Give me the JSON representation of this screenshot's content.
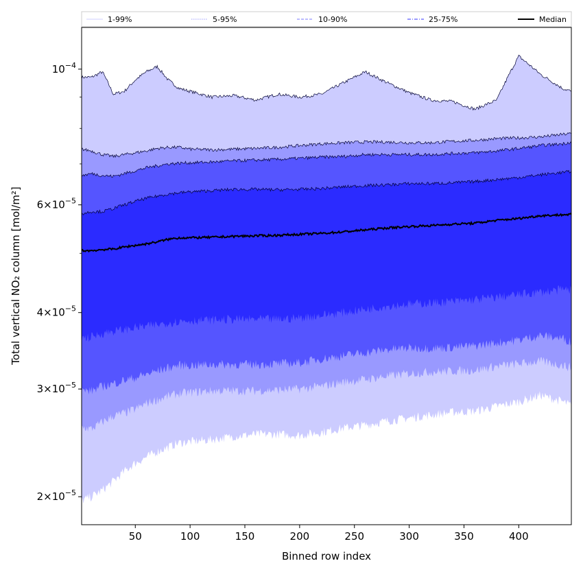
{
  "chart_data": {
    "type": "area",
    "xlabel": "Binned row index",
    "ylabel": "Total vertical NO₂ column [mol/m²]",
    "xlim": [
      1,
      448
    ],
    "ylim": [
      1.8e-05,
      0.000117
    ],
    "yscale": "log",
    "x_ticks": [
      50,
      100,
      150,
      200,
      250,
      300,
      350,
      400
    ],
    "x_tick_labels": [
      "50",
      "100",
      "150",
      "200",
      "250",
      "300",
      "350",
      "400"
    ],
    "y_ticks": [
      2e-05,
      3e-05,
      4e-05,
      6e-05,
      0.0001
    ],
    "y_tick_labels": [
      {
        "base": "2×10",
        "exp": "−5"
      },
      {
        "base": "3×10",
        "exp": "−5"
      },
      {
        "base": "4×10",
        "exp": "−5"
      },
      {
        "base": "6×10",
        "exp": "−5"
      },
      {
        "base": "10",
        "exp": "−4"
      }
    ],
    "y_minor_ticks": [
      5e-05,
      7e-05,
      8e-05,
      9e-05
    ],
    "grid": false,
    "legend_position": "top",
    "x": [
      1,
      10,
      20,
      30,
      40,
      50,
      60,
      70,
      80,
      90,
      100,
      120,
      140,
      160,
      180,
      200,
      220,
      240,
      260,
      280,
      300,
      320,
      340,
      360,
      380,
      400,
      420,
      440,
      448
    ],
    "bands": [
      {
        "name": "1-99%",
        "color": "#ccccff",
        "lower": [
          1.97e-05,
          2e-05,
          2.05e-05,
          2.12e-05,
          2.2e-05,
          2.27e-05,
          2.32e-05,
          2.37e-05,
          2.41e-05,
          2.45e-05,
          2.46e-05,
          2.48e-05,
          2.51e-05,
          2.53e-05,
          2.53e-05,
          2.52e-05,
          2.55e-05,
          2.59e-05,
          2.62e-05,
          2.66e-05,
          2.69e-05,
          2.72e-05,
          2.75e-05,
          2.76e-05,
          2.81e-05,
          2.86e-05,
          2.93e-05,
          2.86e-05,
          2.82e-05
        ],
        "upper": [
          9.7e-05,
          9.7e-05,
          9.9e-05,
          9.1e-05,
          9.2e-05,
          9.6e-05,
          9.9e-05,
          0.000101,
          9.6e-05,
          9.3e-05,
          9.2e-05,
          9e-05,
          9.05e-05,
          8.9e-05,
          9.1e-05,
          9e-05,
          9.1e-05,
          9.5e-05,
          9.9e-05,
          9.5e-05,
          9.15e-05,
          8.9e-05,
          8.85e-05,
          8.6e-05,
          8.9e-05,
          0.000105,
          9.8e-05,
          9.3e-05,
          9.2e-05
        ]
      },
      {
        "name": "5-95%",
        "color": "#9999ff",
        "lower": [
          2.6e-05,
          2.58e-05,
          2.65e-05,
          2.71e-05,
          2.74e-05,
          2.78e-05,
          2.84e-05,
          2.88e-05,
          2.92e-05,
          2.95e-05,
          2.96e-05,
          2.98e-05,
          2.98e-05,
          2.98e-05,
          2.99e-05,
          3e-05,
          3.03e-05,
          3.08e-05,
          3.11e-05,
          3.15e-05,
          3.18e-05,
          3.2e-05,
          3.21e-05,
          3.22e-05,
          3.27e-05,
          3.3e-05,
          3.33e-05,
          3.28e-05,
          3.25e-05
        ],
        "upper": [
          7.4e-05,
          7.35e-05,
          7.25e-05,
          7.2e-05,
          7.25e-05,
          7.3e-05,
          7.35e-05,
          7.42e-05,
          7.45e-05,
          7.45e-05,
          7.4e-05,
          7.38e-05,
          7.4e-05,
          7.42e-05,
          7.45e-05,
          7.5e-05,
          7.55e-05,
          7.58e-05,
          7.6e-05,
          7.6e-05,
          7.58e-05,
          7.58e-05,
          7.62e-05,
          7.65e-05,
          7.7e-05,
          7.72e-05,
          7.75e-05,
          7.82e-05,
          7.85e-05
        ]
      },
      {
        "name": "10-90%",
        "color": "#5555ff",
        "lower": [
          2.98e-05,
          2.98e-05,
          3.03e-05,
          3.06e-05,
          3.1e-05,
          3.13e-05,
          3.17e-05,
          3.21e-05,
          3.25e-05,
          3.28e-05,
          3.28e-05,
          3.29e-05,
          3.29e-05,
          3.29e-05,
          3.3e-05,
          3.31e-05,
          3.36e-05,
          3.4e-05,
          3.44e-05,
          3.48e-05,
          3.5e-05,
          3.5e-05,
          3.51e-05,
          3.53e-05,
          3.57e-05,
          3.61e-05,
          3.67e-05,
          3.63e-05,
          3.58e-05
        ],
        "upper": [
          6.7e-05,
          6.75e-05,
          6.7e-05,
          6.68e-05,
          6.75e-05,
          6.82e-05,
          6.9e-05,
          6.95e-05,
          7e-05,
          7.02e-05,
          7.03e-05,
          7.05e-05,
          7.08e-05,
          7.1e-05,
          7.12e-05,
          7.15e-05,
          7.18e-05,
          7.2e-05,
          7.25e-05,
          7.25e-05,
          7.25e-05,
          7.25e-05,
          7.28e-05,
          7.3e-05,
          7.35e-05,
          7.42e-05,
          7.5e-05,
          7.55e-05,
          7.6e-05
        ]
      },
      {
        "name": "25-75%",
        "color": "#2b2bff",
        "lower": [
          3.63e-05,
          3.65e-05,
          3.7e-05,
          3.73e-05,
          3.75e-05,
          3.78e-05,
          3.8e-05,
          3.82e-05,
          3.85e-05,
          3.87e-05,
          3.88e-05,
          3.89e-05,
          3.9e-05,
          3.9e-05,
          3.9e-05,
          3.92e-05,
          3.96e-05,
          4e-05,
          4.05e-05,
          4.1e-05,
          4.13e-05,
          4.15e-05,
          4.17e-05,
          4.2e-05,
          4.24e-05,
          4.28e-05,
          4.32e-05,
          4.36e-05,
          4.37e-05
        ],
        "upper": [
          5.8e-05,
          5.85e-05,
          5.85e-05,
          5.92e-05,
          6e-05,
          6.08e-05,
          6.15e-05,
          6.2e-05,
          6.25e-05,
          6.28e-05,
          6.3e-05,
          6.33e-05,
          6.36e-05,
          6.36e-05,
          6.35e-05,
          6.36e-05,
          6.38e-05,
          6.42e-05,
          6.45e-05,
          6.47e-05,
          6.5e-05,
          6.5e-05,
          6.52e-05,
          6.55e-05,
          6.6e-05,
          6.65e-05,
          6.72e-05,
          6.78e-05,
          6.8e-05
        ]
      }
    ],
    "series": [
      {
        "name": "Median",
        "color": "#000000",
        "values": [
          5.05e-05,
          5.05e-05,
          5.07e-05,
          5.08e-05,
          5.12e-05,
          5.15e-05,
          5.18e-05,
          5.22e-05,
          5.27e-05,
          5.3e-05,
          5.3e-05,
          5.31e-05,
          5.33e-05,
          5.34e-05,
          5.35e-05,
          5.37e-05,
          5.39e-05,
          5.42e-05,
          5.46e-05,
          5.5e-05,
          5.53e-05,
          5.55e-05,
          5.58e-05,
          5.6e-05,
          5.66e-05,
          5.7e-05,
          5.76e-05,
          5.78e-05,
          5.79e-05
        ]
      }
    ],
    "legend": [
      {
        "label": "1-99%",
        "color": "#ccccff",
        "style": "solid-thin"
      },
      {
        "label": "5-95%",
        "color": "#9999ff",
        "style": "dotted"
      },
      {
        "label": "10-90%",
        "color": "#7777ff",
        "style": "dashed"
      },
      {
        "label": "25-75%",
        "color": "#3333ff",
        "style": "dashdot"
      },
      {
        "label": "Median",
        "color": "#000000",
        "style": "solid-thick"
      }
    ]
  }
}
